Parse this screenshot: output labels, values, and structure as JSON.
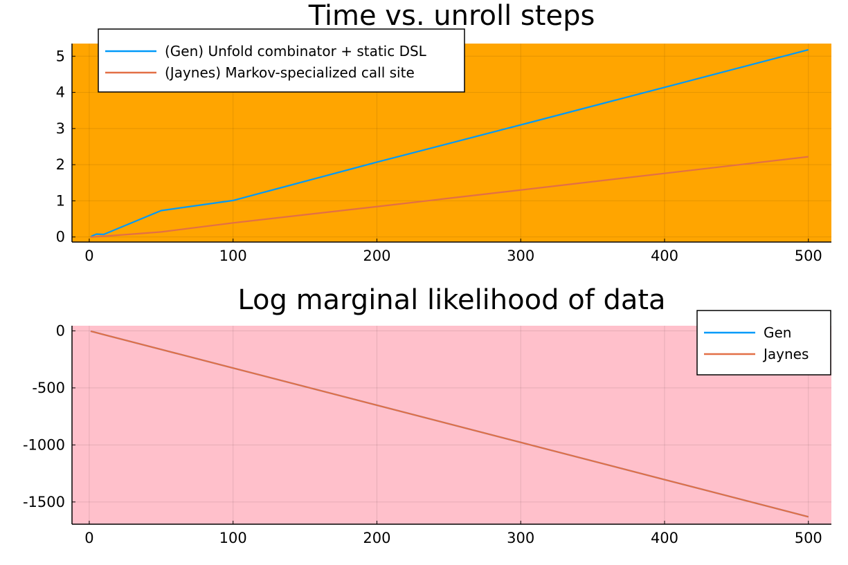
{
  "chart_data": [
    {
      "type": "line",
      "title": "Time vs. unroll steps",
      "xlabel": "",
      "ylabel": "",
      "background": "#ffa500",
      "xlim": [
        -12,
        516
      ],
      "ylim": [
        -0.14,
        5.35
      ],
      "xticks": [
        0,
        100,
        200,
        300,
        400,
        500
      ],
      "yticks": [
        0,
        1,
        2,
        3,
        4,
        5
      ],
      "xtick_labels": [
        "0",
        "100",
        "200",
        "300",
        "400",
        "500"
      ],
      "ytick_labels": [
        "0",
        "1",
        "2",
        "3",
        "4",
        "5"
      ],
      "grid": true,
      "legend_position": "top-left",
      "series": [
        {
          "name": "(Gen) Unfold combinator + static DSL",
          "color": "#009af9",
          "x": [
            1,
            2,
            5,
            10,
            50,
            100,
            200,
            300,
            400,
            500
          ],
          "y": [
            0.0,
            0.03,
            0.08,
            0.07,
            0.73,
            1.01,
            2.07,
            3.1,
            4.14,
            5.18
          ]
        },
        {
          "name": "(Jaynes) Markov-specialized call site",
          "color": "#e26f46",
          "x": [
            1,
            2,
            5,
            10,
            50,
            100,
            200,
            300,
            400,
            500
          ],
          "y": [
            0.0,
            0.0,
            0.01,
            0.02,
            0.14,
            0.39,
            0.84,
            1.3,
            1.76,
            2.22
          ]
        }
      ]
    },
    {
      "type": "line",
      "title": "Log marginal likelihood of data",
      "xlabel": "",
      "ylabel": "",
      "background": "#ffc0cb",
      "xlim": [
        -12,
        516
      ],
      "ylim": [
        -1695,
        45
      ],
      "xticks": [
        0,
        100,
        200,
        300,
        400,
        500
      ],
      "yticks": [
        0,
        -500,
        -1000,
        -1500
      ],
      "xtick_labels": [
        "0",
        "100",
        "200",
        "300",
        "400",
        "500"
      ],
      "ytick_labels": [
        "0",
        "-500",
        "-1000",
        "-1500"
      ],
      "grid": true,
      "legend_position": "top-right",
      "series": [
        {
          "name": "Gen",
          "color": "#009af9",
          "x": [
            1,
            2,
            5,
            10,
            50,
            100,
            200,
            300,
            400,
            500
          ],
          "y": [
            -3.3,
            -6.5,
            -16.3,
            -32.6,
            -163,
            -326,
            -652,
            -978,
            -1304,
            -1630
          ]
        },
        {
          "name": "Jaynes",
          "color": "#e26f46",
          "x": [
            1,
            2,
            5,
            10,
            50,
            100,
            200,
            300,
            400,
            500
          ],
          "y": [
            -3.3,
            -6.5,
            -16.3,
            -32.6,
            -163,
            -326,
            -652,
            -978,
            -1304,
            -1630
          ]
        }
      ]
    }
  ]
}
